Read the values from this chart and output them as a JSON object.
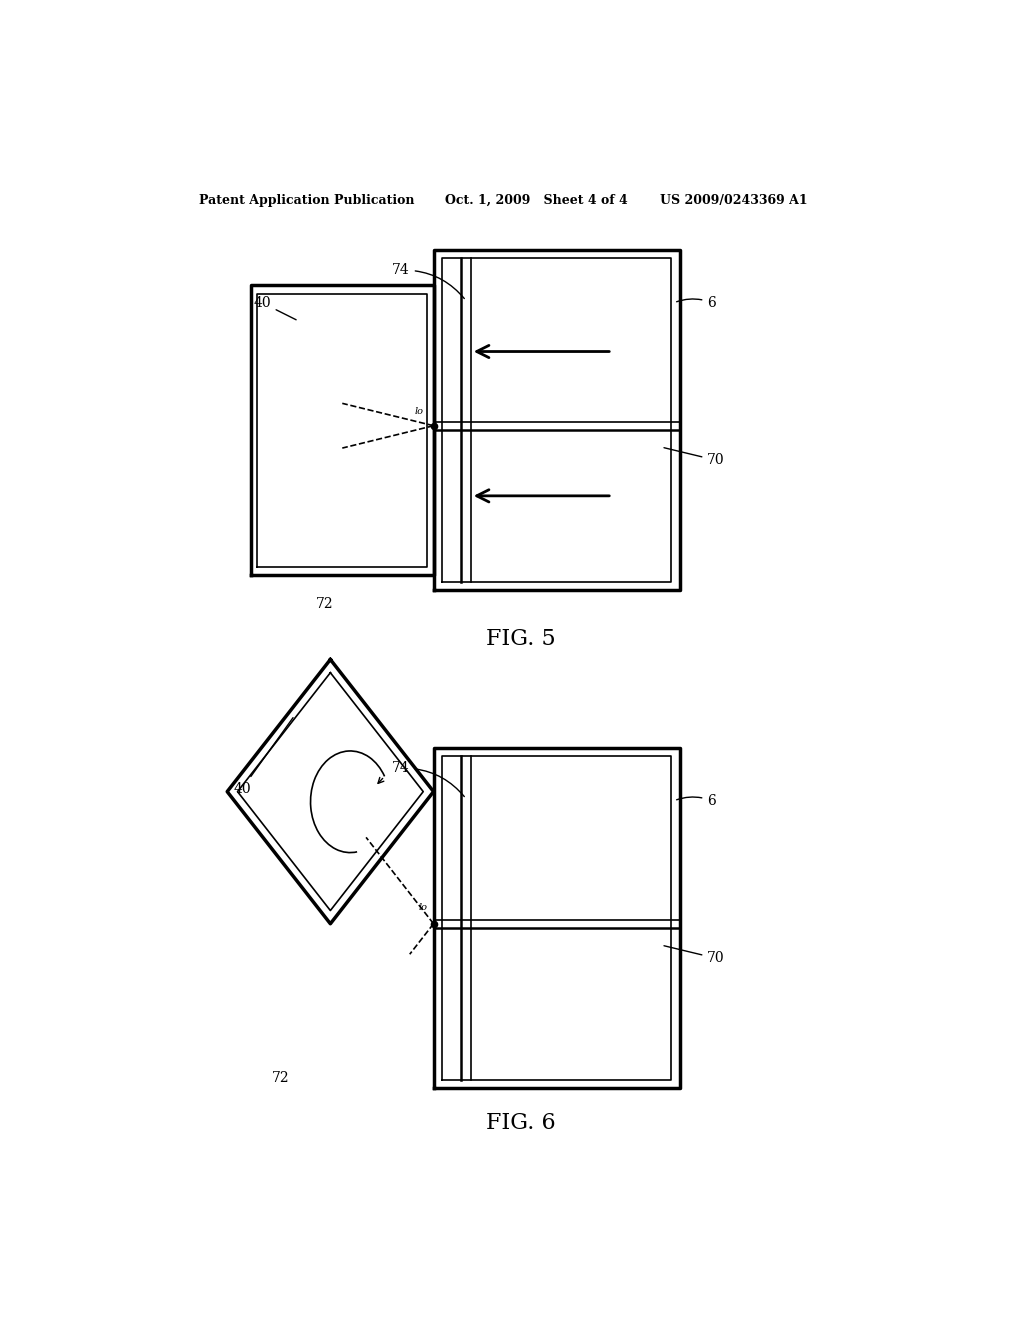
{
  "bg_color": "#ffffff",
  "line_color": "#000000",
  "header_left": "Patent Application Publication",
  "header_mid": "Oct. 1, 2009   Sheet 4 of 4",
  "header_right": "US 2009/0243369 A1",
  "fig5_label": "FIG. 5",
  "fig6_label": "FIG. 6",
  "lw_thick": 2.5,
  "lw_med": 1.8,
  "lw_thin": 1.2
}
